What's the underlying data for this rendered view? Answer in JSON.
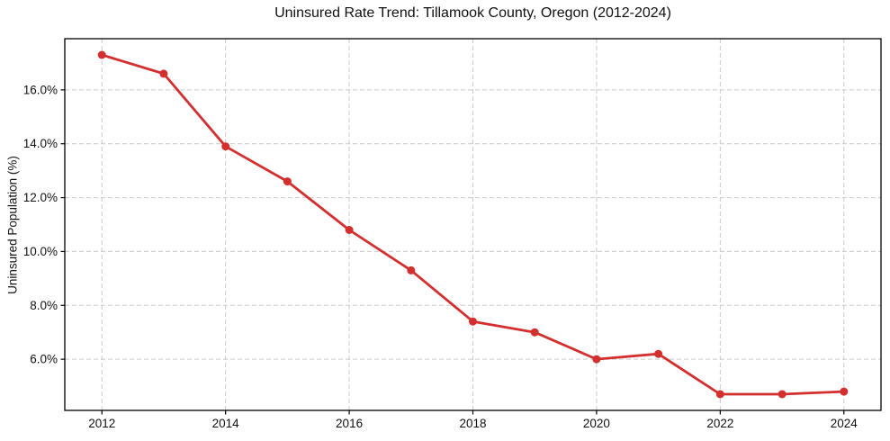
{
  "chart_data": {
    "type": "line",
    "title": "Uninsured Rate Trend: Tillamook County, Oregon (2012-2024)",
    "xlabel": "",
    "ylabel": "Uninsured Population (%)",
    "x": [
      2012,
      2013,
      2014,
      2015,
      2016,
      2017,
      2018,
      2019,
      2020,
      2021,
      2022,
      2023,
      2024
    ],
    "values": [
      17.3,
      16.6,
      13.9,
      12.6,
      10.8,
      9.3,
      7.4,
      7.0,
      6.0,
      6.2,
      4.7,
      4.7,
      4.8
    ],
    "xlim": [
      2011.4,
      2024.6
    ],
    "ylim": [
      4.1,
      17.9
    ],
    "xticks": [
      2012,
      2014,
      2016,
      2018,
      2020,
      2022,
      2024
    ],
    "xtick_labels": [
      "2012",
      "2014",
      "2016",
      "2018",
      "2020",
      "2022",
      "2024"
    ],
    "yticks": [
      6,
      8,
      10,
      12,
      14,
      16
    ],
    "ytick_labels": [
      "6.0%",
      "8.0%",
      "10.0%",
      "12.0%",
      "14.0%",
      "16.0%"
    ],
    "grid": true,
    "grid_style": "dashed",
    "legend": false,
    "colors": {
      "line": "#d32f2f",
      "marker": "#d32f2f",
      "grid": "#c9c9c9",
      "frame": "#000000",
      "text": "#111111",
      "background": "#ffffff"
    }
  }
}
